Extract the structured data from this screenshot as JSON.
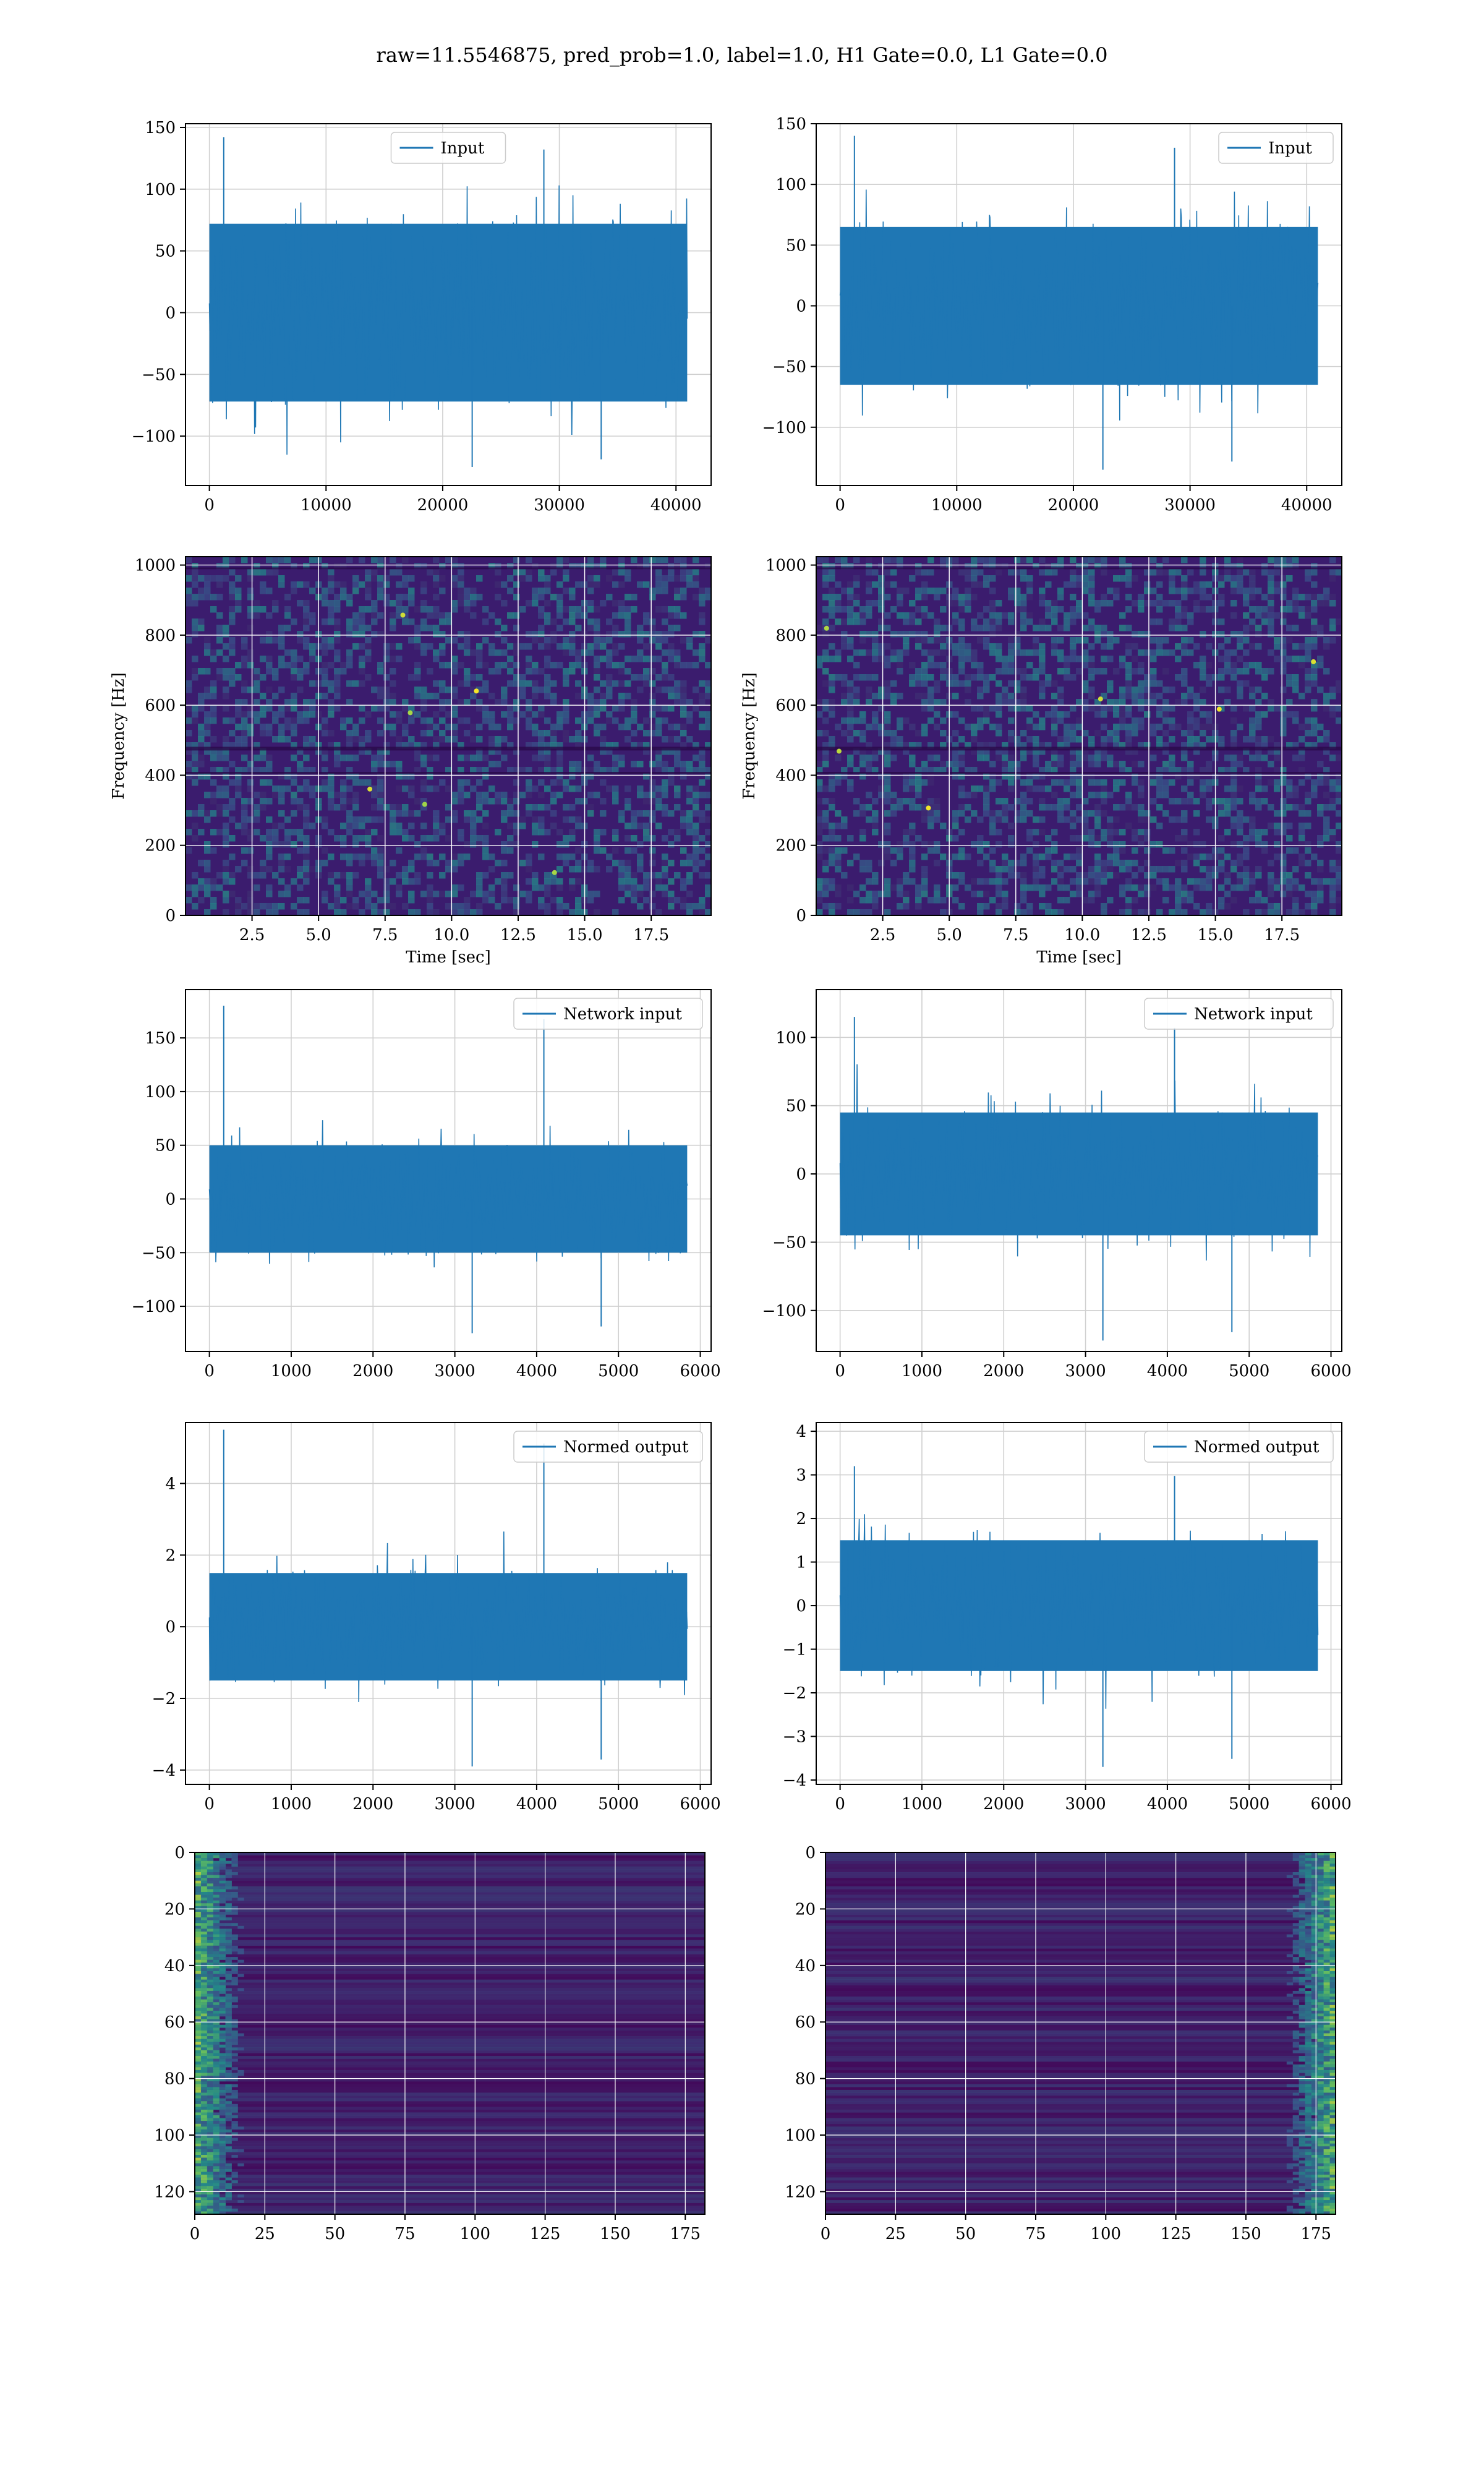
{
  "suptitle": "raw=11.5546875, pred_prob=1.0, label=1.0, H1 Gate=0.0, L1 Gate=0.0",
  "colors": {
    "line": "#1f77b4",
    "grid": "#d0d0d0",
    "axes": "#000000",
    "viridis_low": "#440154",
    "viridis_mid": "#21918c",
    "viridis_high": "#fde725"
  },
  "chart_data": [
    {
      "id": "h1-input",
      "type": "line",
      "legend": "Input",
      "legend_loc": "upper-center",
      "n_points": 40960,
      "xlim": [
        -2048,
        43008
      ],
      "ylim": [
        -140,
        153
      ],
      "xticks": [
        0,
        10000,
        20000,
        30000,
        40000
      ],
      "yticks": [
        -100,
        -50,
        0,
        50,
        100,
        150
      ],
      "envelope": {
        "x_start": 0,
        "x_end": 40960,
        "core": [
          -72,
          72
        ],
        "peaks": [
          -125,
          142
        ]
      },
      "grid": true
    },
    {
      "id": "l1-input",
      "type": "line",
      "legend": "Input",
      "legend_loc": "upper-right",
      "n_points": 40960,
      "xlim": [
        -2048,
        43008
      ],
      "ylim": [
        -148,
        150
      ],
      "xticks": [
        0,
        10000,
        20000,
        30000,
        40000
      ],
      "yticks": [
        -100,
        -50,
        0,
        50,
        100,
        150
      ],
      "envelope": {
        "x_start": 0,
        "x_end": 40960,
        "core": [
          -65,
          65
        ],
        "peaks": [
          -135,
          140
        ]
      },
      "grid": true
    },
    {
      "id": "h1-spectrogram",
      "type": "heatmap",
      "xlabel": "Time [sec]",
      "ylabel": "Frequency [Hz]",
      "xlim": [
        0,
        19.75
      ],
      "ylim": [
        0,
        1024
      ],
      "xticks": [
        2.5,
        5.0,
        7.5,
        10.0,
        12.5,
        15.0,
        17.5
      ],
      "xtick_labels": [
        "2.5",
        "5.0",
        "7.5",
        "10.0",
        "12.5",
        "15.0",
        "17.5"
      ],
      "yticks": [
        0,
        200,
        400,
        600,
        800,
        1000
      ],
      "colormap": "viridis",
      "grid": true
    },
    {
      "id": "l1-spectrogram",
      "type": "heatmap",
      "xlabel": "Time [sec]",
      "ylabel": "Frequency [Hz]",
      "xlim": [
        0,
        19.75
      ],
      "ylim": [
        0,
        1024
      ],
      "xticks": [
        2.5,
        5.0,
        7.5,
        10.0,
        12.5,
        15.0,
        17.5
      ],
      "xtick_labels": [
        "2.5",
        "5.0",
        "7.5",
        "10.0",
        "12.5",
        "15.0",
        "17.5"
      ],
      "yticks": [
        0,
        200,
        400,
        600,
        800,
        1000
      ],
      "colormap": "viridis",
      "grid": true
    },
    {
      "id": "h1-network-input",
      "type": "line",
      "legend": "Network input",
      "legend_loc": "upper-right",
      "n_points": 5840,
      "xlim": [
        -292,
        6132
      ],
      "ylim": [
        -142,
        195
      ],
      "xticks": [
        0,
        1000,
        2000,
        3000,
        4000,
        5000,
        6000
      ],
      "yticks": [
        -100,
        -50,
        0,
        50,
        100,
        150
      ],
      "envelope": {
        "x_start": 0,
        "x_end": 5840,
        "core": [
          -50,
          50
        ],
        "peaks": [
          -125,
          180
        ]
      },
      "grid": true
    },
    {
      "id": "l1-network-input",
      "type": "line",
      "legend": "Network input",
      "legend_loc": "upper-right",
      "n_points": 5840,
      "xlim": [
        -292,
        6132
      ],
      "ylim": [
        -130,
        135
      ],
      "xticks": [
        0,
        1000,
        2000,
        3000,
        4000,
        5000,
        6000
      ],
      "yticks": [
        -100,
        -50,
        0,
        50,
        100
      ],
      "envelope": {
        "x_start": 0,
        "x_end": 5840,
        "core": [
          -45,
          45
        ],
        "peaks": [
          -122,
          115
        ]
      },
      "grid": true
    },
    {
      "id": "h1-normed-output",
      "type": "line",
      "legend": "Normed output",
      "legend_loc": "upper-right",
      "n_points": 5840,
      "xlim": [
        -292,
        6132
      ],
      "ylim": [
        -4.4,
        5.7
      ],
      "xticks": [
        0,
        1000,
        2000,
        3000,
        4000,
        5000,
        6000
      ],
      "yticks": [
        -4,
        -2,
        0,
        2,
        4
      ],
      "envelope": {
        "x_start": 0,
        "x_end": 5840,
        "core": [
          -1.5,
          1.5
        ],
        "peaks": [
          -3.9,
          5.5
        ]
      },
      "grid": true
    },
    {
      "id": "l1-normed-output",
      "type": "line",
      "legend": "Normed output",
      "legend_loc": "upper-right",
      "n_points": 5840,
      "xlim": [
        -292,
        6132
      ],
      "ylim": [
        -4.1,
        4.2
      ],
      "xticks": [
        0,
        1000,
        2000,
        3000,
        4000,
        5000,
        6000
      ],
      "yticks": [
        -4,
        -3,
        -2,
        -1,
        0,
        1,
        2,
        3,
        4
      ],
      "envelope": {
        "x_start": 0,
        "x_end": 5840,
        "core": [
          -1.5,
          1.5
        ],
        "peaks": [
          -3.7,
          3.2
        ]
      },
      "grid": true
    },
    {
      "id": "h1-feature-map",
      "type": "heatmap",
      "xlim": [
        0,
        182
      ],
      "ylim": [
        128,
        0
      ],
      "xticks": [
        0,
        25,
        50,
        75,
        100,
        125,
        150,
        175
      ],
      "yticks": [
        0,
        20,
        40,
        60,
        80,
        100,
        120
      ],
      "colormap": "viridis",
      "bright_region": "left",
      "grid": true
    },
    {
      "id": "l1-feature-map",
      "type": "heatmap",
      "xlim": [
        0,
        182
      ],
      "ylim": [
        128,
        0
      ],
      "xticks": [
        0,
        25,
        50,
        75,
        100,
        125,
        150,
        175
      ],
      "yticks": [
        0,
        20,
        40,
        60,
        80,
        100,
        120
      ],
      "colormap": "viridis",
      "bright_region": "right",
      "grid": true
    }
  ]
}
